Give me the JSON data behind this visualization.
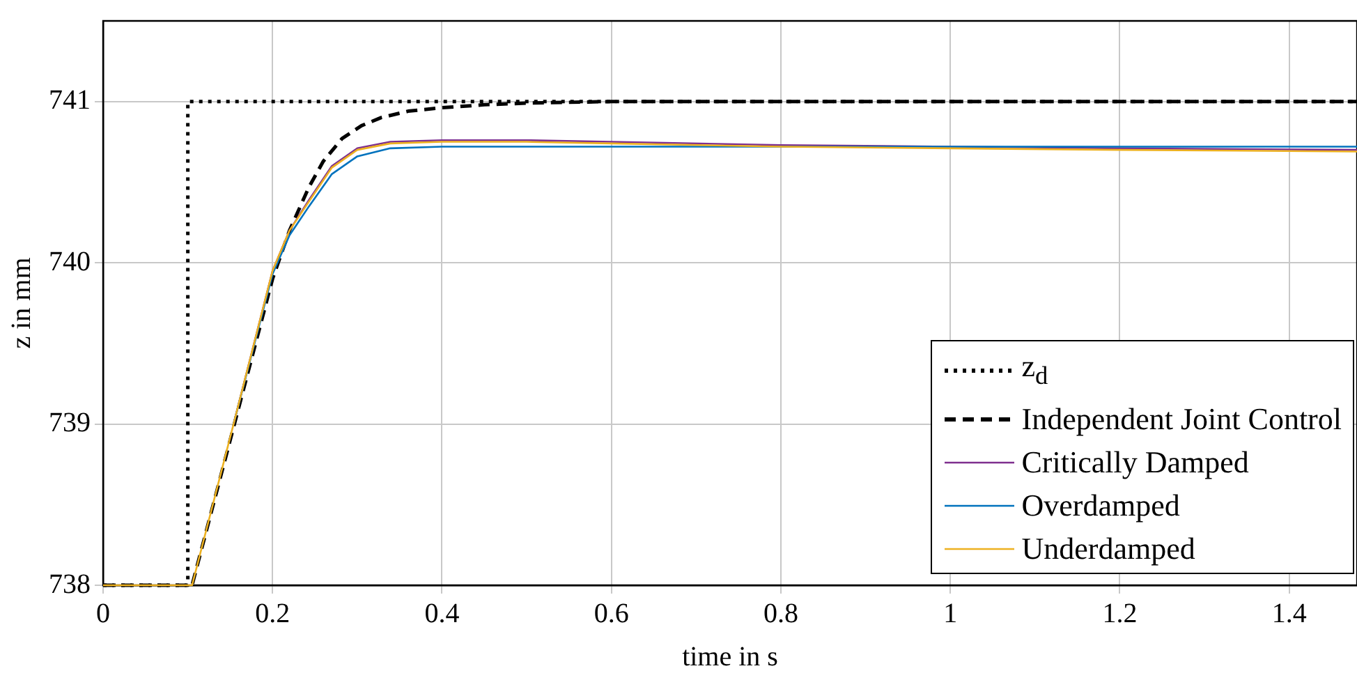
{
  "chart_data": {
    "type": "line",
    "xlabel": "time in s",
    "ylabel": "z in mm",
    "xlim": [
      0,
      1.48
    ],
    "ylim": [
      738,
      741.5
    ],
    "xticks": [
      0,
      0.2,
      0.4,
      0.6,
      0.8,
      1,
      1.2,
      1.4
    ],
    "yticks": [
      738,
      739,
      740,
      741
    ],
    "grid": true,
    "legend": "bottom right",
    "marker": "none",
    "series": [
      {
        "name": "z$_{d}$",
        "color": "#000000",
        "line_style": "dotted",
        "x": [
          0,
          0.1,
          0.1,
          1.48
        ],
        "values": [
          738,
          738,
          741,
          741
        ]
      },
      {
        "name": "Independent Joint Control",
        "color": "#000000",
        "line_style": "dashed",
        "x": [
          0,
          0.1,
          0.105,
          0.155,
          0.2,
          0.22,
          0.243,
          0.26,
          0.282,
          0.305,
          0.328,
          0.36,
          0.396,
          0.45,
          0.5,
          0.6,
          0.8,
          1.0,
          1.2,
          1.48
        ],
        "values": [
          738,
          738,
          738,
          739,
          739.9,
          740.2,
          740.47,
          740.63,
          740.77,
          740.85,
          740.9,
          740.94,
          740.96,
          740.98,
          740.99,
          741,
          741,
          741,
          741,
          741
        ]
      },
      {
        "name": "Critically Damped",
        "color": "#7e2f8e",
        "line_style": "solid",
        "x": [
          0.154,
          0.2,
          0.22,
          0.243,
          0.27,
          0.3,
          0.339,
          0.4,
          0.5,
          0.6,
          0.8,
          1.0,
          1.2,
          1.48
        ],
        "values": [
          739,
          739.95,
          740.2,
          740.39,
          740.6,
          740.71,
          740.75,
          740.76,
          740.76,
          740.75,
          740.73,
          740.72,
          740.71,
          740.7
        ]
      },
      {
        "name": "Overdamped",
        "color": "#0072bd",
        "line_style": "solid",
        "x": [
          0.154,
          0.2,
          0.22,
          0.243,
          0.27,
          0.3,
          0.339,
          0.4,
          0.5,
          0.6,
          0.8,
          1.0,
          1.2,
          1.48
        ],
        "values": [
          739,
          739.93,
          740.17,
          740.35,
          740.55,
          740.66,
          740.71,
          740.72,
          740.72,
          740.72,
          740.72,
          740.72,
          740.72,
          740.72
        ]
      },
      {
        "name": "Underdamped",
        "color": "#edb120",
        "line_style": "solid",
        "x": [
          0,
          0.1,
          0.105,
          0.154,
          0.2,
          0.22,
          0.243,
          0.27,
          0.3,
          0.339,
          0.4,
          0.5,
          0.6,
          0.8,
          1.0,
          1.2,
          1.48
        ],
        "values": [
          738,
          738,
          738,
          739,
          739.95,
          740.2,
          740.38,
          740.59,
          740.7,
          740.74,
          740.75,
          740.75,
          740.74,
          740.72,
          740.71,
          740.7,
          740.69
        ]
      }
    ]
  }
}
